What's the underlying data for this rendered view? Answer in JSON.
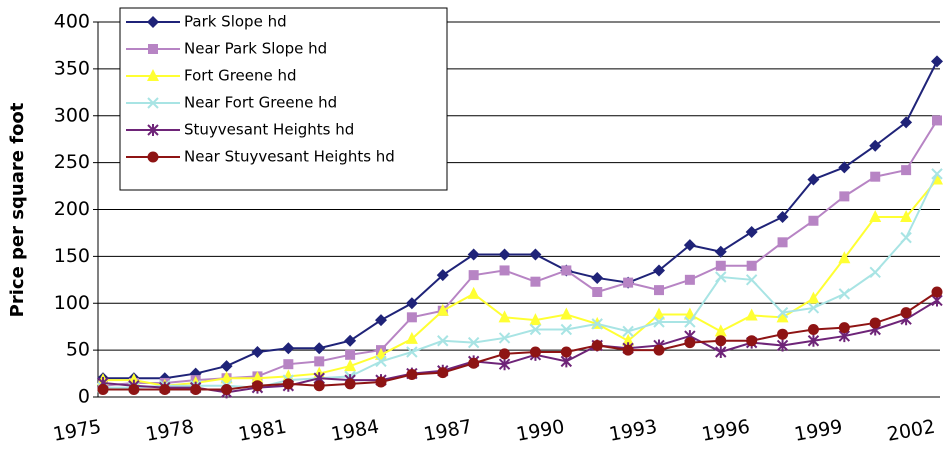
{
  "chart_data": {
    "type": "line",
    "y_label": "Price per square foot",
    "categories": [
      "1975",
      null,
      null,
      "1978",
      null,
      null,
      "1981",
      null,
      null,
      "1984",
      null,
      null,
      "1987",
      null,
      null,
      "1990",
      null,
      null,
      "1993",
      null,
      null,
      "1996",
      null,
      null,
      "1999",
      null,
      null,
      "2002"
    ],
    "ylim": [
      0,
      400
    ],
    "yticks": [
      0,
      50,
      100,
      150,
      200,
      250,
      300,
      350,
      400
    ],
    "grid": true,
    "legend": "top-left",
    "series": [
      {
        "name": "Park Slope hd",
        "color": "#1f2378",
        "marker": "diamond",
        "values": [
          20,
          20,
          20,
          25,
          33,
          48,
          52,
          52,
          60,
          82,
          100,
          130,
          152,
          152,
          152,
          135,
          127,
          122,
          135,
          162,
          155,
          176,
          192,
          232,
          245,
          268,
          293,
          358
        ]
      },
      {
        "name": "Near Park Slope hd",
        "color": "#b784c4",
        "marker": "square",
        "values": [
          12,
          15,
          15,
          18,
          20,
          22,
          35,
          38,
          45,
          50,
          85,
          92,
          130,
          135,
          123,
          135,
          112,
          122,
          114,
          125,
          140,
          140,
          165,
          188,
          214,
          235,
          242,
          295
        ]
      },
      {
        "name": "Fort Greene hd",
        "color": "#ffff33",
        "marker": "triangle",
        "values": [
          18,
          18,
          12,
          15,
          20,
          20,
          22,
          25,
          33,
          45,
          62,
          92,
          110,
          85,
          82,
          88,
          78,
          60,
          88,
          88,
          70,
          87,
          85,
          105,
          148,
          192,
          192,
          232
        ]
      },
      {
        "name": "Near Fort Greene hd",
        "color": "#a8e4e4",
        "marker": "x",
        "values": [
          10,
          10,
          12,
          12,
          12,
          10,
          18,
          20,
          22,
          38,
          48,
          60,
          58,
          63,
          72,
          72,
          78,
          70,
          80,
          80,
          128,
          125,
          90,
          95,
          110,
          133,
          170,
          238
        ]
      },
      {
        "name": "Stuyvesant Heights hd",
        "color": "#6e2478",
        "marker": "star",
        "values": [
          15,
          12,
          10,
          10,
          5,
          10,
          12,
          20,
          18,
          18,
          25,
          28,
          38,
          35,
          45,
          38,
          55,
          52,
          55,
          65,
          48,
          58,
          55,
          60,
          65,
          72,
          83,
          103
        ]
      },
      {
        "name": "Near Stuyvesant Heights hd",
        "color": "#8e1414",
        "marker": "circle",
        "values": [
          8,
          8,
          8,
          8,
          8,
          12,
          14,
          12,
          14,
          16,
          24,
          26,
          36,
          46,
          48,
          48,
          55,
          50,
          50,
          58,
          60,
          60,
          67,
          72,
          74,
          79,
          90,
          112
        ]
      }
    ]
  }
}
